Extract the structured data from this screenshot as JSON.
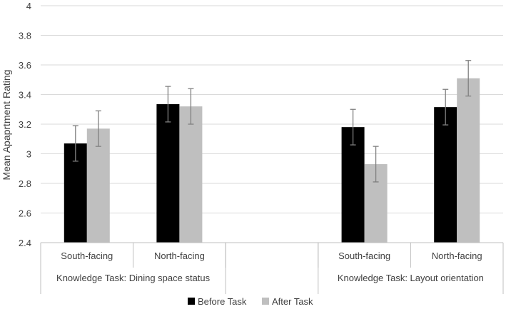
{
  "chart_data": {
    "type": "bar",
    "title": "",
    "ylabel": "Mean Apaprtment Rating",
    "xlabel": "",
    "ylim": [
      2.4,
      4
    ],
    "yticks": [
      2.4,
      2.6,
      2.8,
      3,
      3.2,
      3.4,
      3.6,
      3.8,
      4
    ],
    "ytick_labels": [
      "2.4",
      "2.6",
      "2.8",
      "3",
      "3.2",
      "3.4",
      "3.6",
      "3.8",
      "4"
    ],
    "grid": true,
    "legend_position": "bottom-center",
    "groups": [
      {
        "label": "Knowledge Task: Dining space status",
        "categories": [
          "South-facing",
          "North-facing"
        ]
      },
      {
        "label": "",
        "categories": [
          ""
        ]
      },
      {
        "label": "Knowledge Task: Layout orientation",
        "categories": [
          "South-facing",
          "North-facing"
        ]
      }
    ],
    "series": [
      {
        "name": "Before Task",
        "color": "#000000",
        "values": [
          3.07,
          3.335,
          null,
          3.18,
          3.315
        ],
        "error": [
          0.12,
          0.12,
          null,
          0.12,
          0.12
        ]
      },
      {
        "name": "After Task",
        "color": "#bfbfbf",
        "values": [
          3.17,
          3.32,
          null,
          2.93,
          3.51
        ],
        "error": [
          0.12,
          0.12,
          null,
          0.12,
          0.12
        ]
      }
    ]
  }
}
